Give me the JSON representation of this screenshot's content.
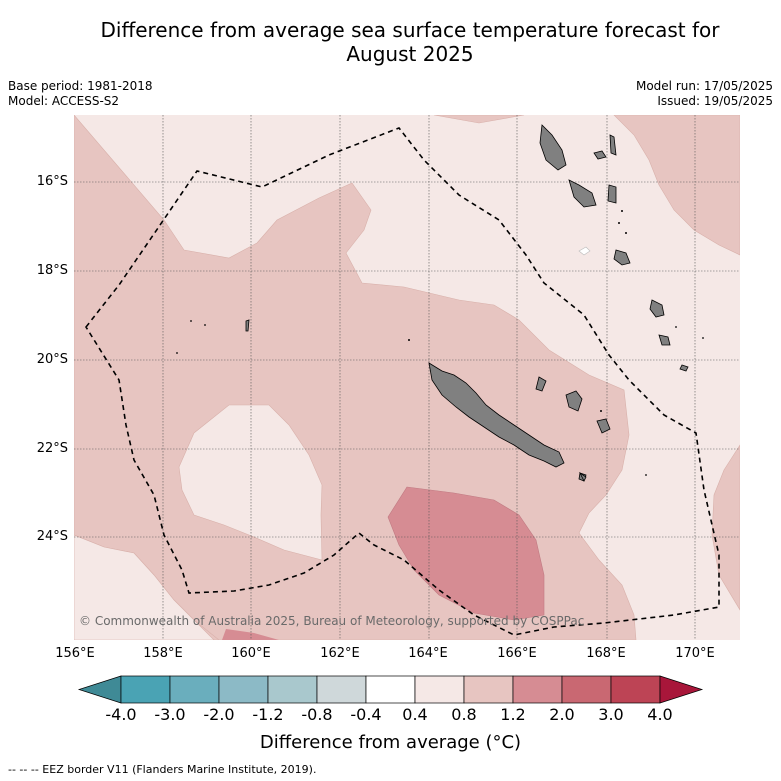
{
  "title_line1": "Difference from average sea surface temperature forecast for",
  "title_line2": "August 2025",
  "base_period": "Base period: 1981-2018",
  "model": "Model: ACCESS-S2",
  "model_run": "Model run: 17/05/2025",
  "issued": "Issued: 19/05/2025",
  "lat_labels": [
    "16°S",
    "18°S",
    "20°S",
    "22°S",
    "24°S"
  ],
  "lon_labels": [
    "156°E",
    "158°E",
    "160°E",
    "162°E",
    "164°E",
    "166°E",
    "168°E",
    "170°E"
  ],
  "copyright": "© Commonwealth of Australia 2025, Bureau of Meteorology, supported by COSPPac",
  "colorbar": {
    "tick_labels": [
      "-4.0",
      "-3.0",
      "-2.0",
      "-1.2",
      "-0.8",
      "-0.4",
      "0.4",
      "0.8",
      "1.2",
      "2.0",
      "3.0",
      "4.0"
    ],
    "colors": [
      "#3f8a96",
      "#4aa3b4",
      "#6aaebd",
      "#8cbac6",
      "#a9c8cd",
      "#cfd8da",
      "#ffffff",
      "#f5e8e6",
      "#e7c5c1",
      "#d68c93",
      "#c96872",
      "#bd4455",
      "#a8163a"
    ],
    "label": "Difference from average (°C)"
  },
  "legend_footnote": "--  --  -- EEZ border V11 (Flanders Marine Institute, 2019).",
  "colors": {
    "class_0_4_to_0_8": "#f5e8e6",
    "class_0_8_to_1_2": "#e7c5c1",
    "class_1_2_to_2_0": "#d68c93",
    "land": "#808080"
  }
}
